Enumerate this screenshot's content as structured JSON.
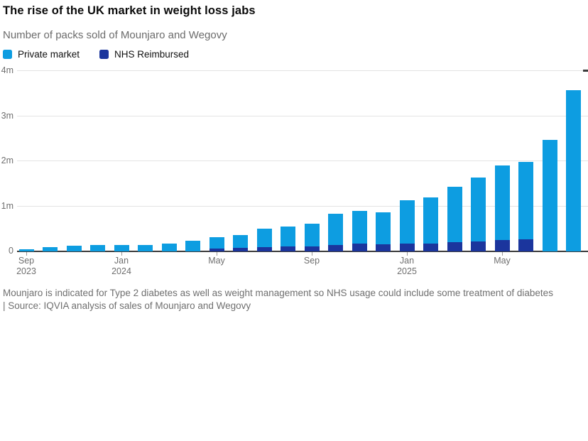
{
  "header": {
    "title": "The rise of the UK market in weight loss jabs",
    "subtitle": "Number of packs sold of Mounjaro and Wegovy"
  },
  "legend": [
    {
      "label": "Private market",
      "color": "#0d9de1"
    },
    {
      "label": "NHS Reimbursed",
      "color": "#1b359d"
    }
  ],
  "footnote": {
    "line1": "Mounjaro is indicated for Type 2 diabetes as well as weight management so NHS usage could include some treatment of diabetes",
    "line2": "| Source: IQVIA analysis of sales of Mounjaro and Wegovy"
  },
  "colors": {
    "private_market": "#0d9de1",
    "nhs_reimbursed": "#1b359d",
    "gridline": "#e3e3e3",
    "axis_line": "#3b3b3b",
    "axis_text": "#6f6f6f",
    "title_text": "#0b0b0b",
    "muted_text": "#6b6b6b"
  },
  "chart_data": {
    "type": "bar",
    "stacked": true,
    "title": "The rise of the UK market in weight loss jabs",
    "subtitle": "Number of packs sold of Mounjaro and Wegovy",
    "unit": "packs (millions)",
    "grid": true,
    "legend_position": "top-left",
    "categories": [
      "Sep 2023",
      "Oct 2023",
      "Nov 2023",
      "Dec 2023",
      "Jan 2024",
      "Feb 2024",
      "Mar 2024",
      "Apr 2024",
      "May 2024",
      "Jun 2024",
      "Jul 2024",
      "Aug 2024",
      "Sep 2024",
      "Oct 2024",
      "Nov 2024",
      "Dec 2024",
      "Jan 2025",
      "Feb 2025",
      "Mar 2025",
      "Apr 2025",
      "May 2025",
      "Jun 2025",
      "Jul 2025",
      "Aug 2025"
    ],
    "series": [
      {
        "name": "NHS Reimbursed",
        "color": "#1b359d",
        "values_millions": [
          0,
          0,
          0,
          0,
          0,
          0,
          0,
          0,
          0.05,
          0.07,
          0.09,
          0.1,
          0.11,
          0.14,
          0.16,
          0.15,
          0.17,
          0.17,
          0.19,
          0.22,
          0.25,
          0.26,
          0,
          0
        ]
      },
      {
        "name": "Private market",
        "color": "#0d9de1",
        "values_millions": [
          0.04,
          0.08,
          0.12,
          0.13,
          0.13,
          0.14,
          0.17,
          0.23,
          0.25,
          0.28,
          0.4,
          0.44,
          0.5,
          0.68,
          0.73,
          0.71,
          0.96,
          1.02,
          1.24,
          1.41,
          1.65,
          1.71,
          2.47,
          3.57
        ]
      }
    ],
    "totals_millions": [
      0.04,
      0.08,
      0.12,
      0.13,
      0.13,
      0.14,
      0.17,
      0.23,
      0.3,
      0.35,
      0.49,
      0.54,
      0.61,
      0.82,
      0.89,
      0.86,
      1.13,
      1.19,
      1.43,
      1.63,
      1.9,
      1.97,
      2.47,
      3.57
    ],
    "y_axis": {
      "min": 0,
      "max": 4,
      "ticks": [
        {
          "label": "4m",
          "value": 4
        },
        {
          "label": "3m",
          "value": 3
        },
        {
          "label": "2m",
          "value": 2
        },
        {
          "label": "1m",
          "value": 1
        },
        {
          "label": "0",
          "value": 0
        }
      ]
    },
    "x_axis": {
      "ticks": [
        {
          "category_index": 0,
          "lines": [
            "Sep",
            "2023"
          ]
        },
        {
          "category_index": 4,
          "lines": [
            "Jan",
            "2024"
          ]
        },
        {
          "category_index": 8,
          "lines": [
            "May"
          ]
        },
        {
          "category_index": 12,
          "lines": [
            "Sep"
          ]
        },
        {
          "category_index": 16,
          "lines": [
            "Jan",
            "2025"
          ]
        },
        {
          "category_index": 20,
          "lines": [
            "May"
          ]
        }
      ]
    }
  }
}
